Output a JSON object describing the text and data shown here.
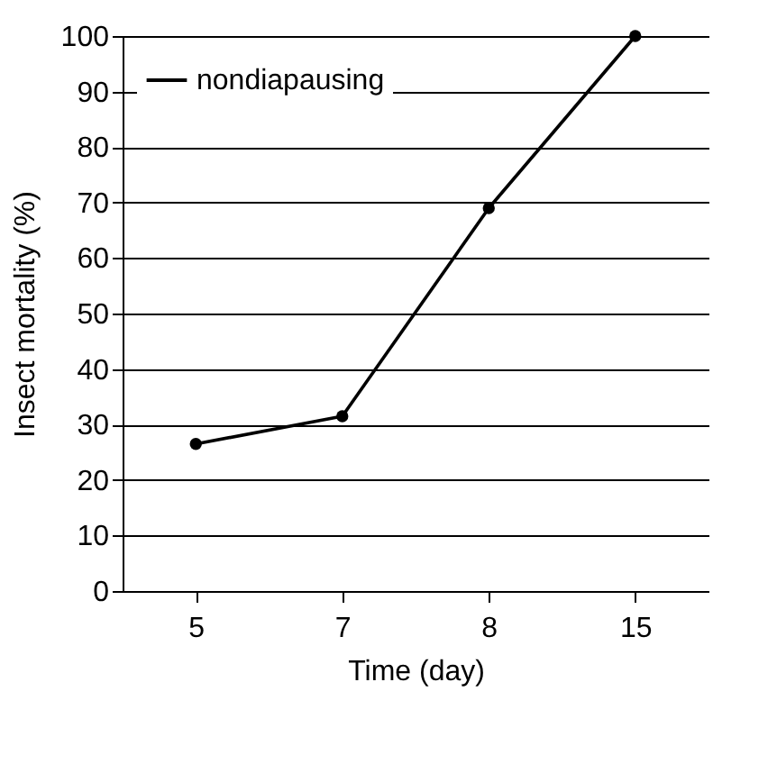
{
  "chart_data": {
    "type": "line",
    "xlabel": "Time (day)",
    "ylabel": "Insect mortality  (%)",
    "categories": [
      "5",
      "7",
      "8",
      "15"
    ],
    "series": [
      {
        "name": "nondiapausing",
        "color": "#000000",
        "values": [
          26.5,
          31.5,
          69,
          100
        ]
      }
    ],
    "ylim": [
      0,
      100
    ],
    "yticks": [
      0,
      10,
      20,
      30,
      40,
      50,
      60,
      70,
      80,
      90,
      100
    ],
    "grid": "y",
    "legend": "top left",
    "marker": "circle",
    "line_style": "solid"
  }
}
